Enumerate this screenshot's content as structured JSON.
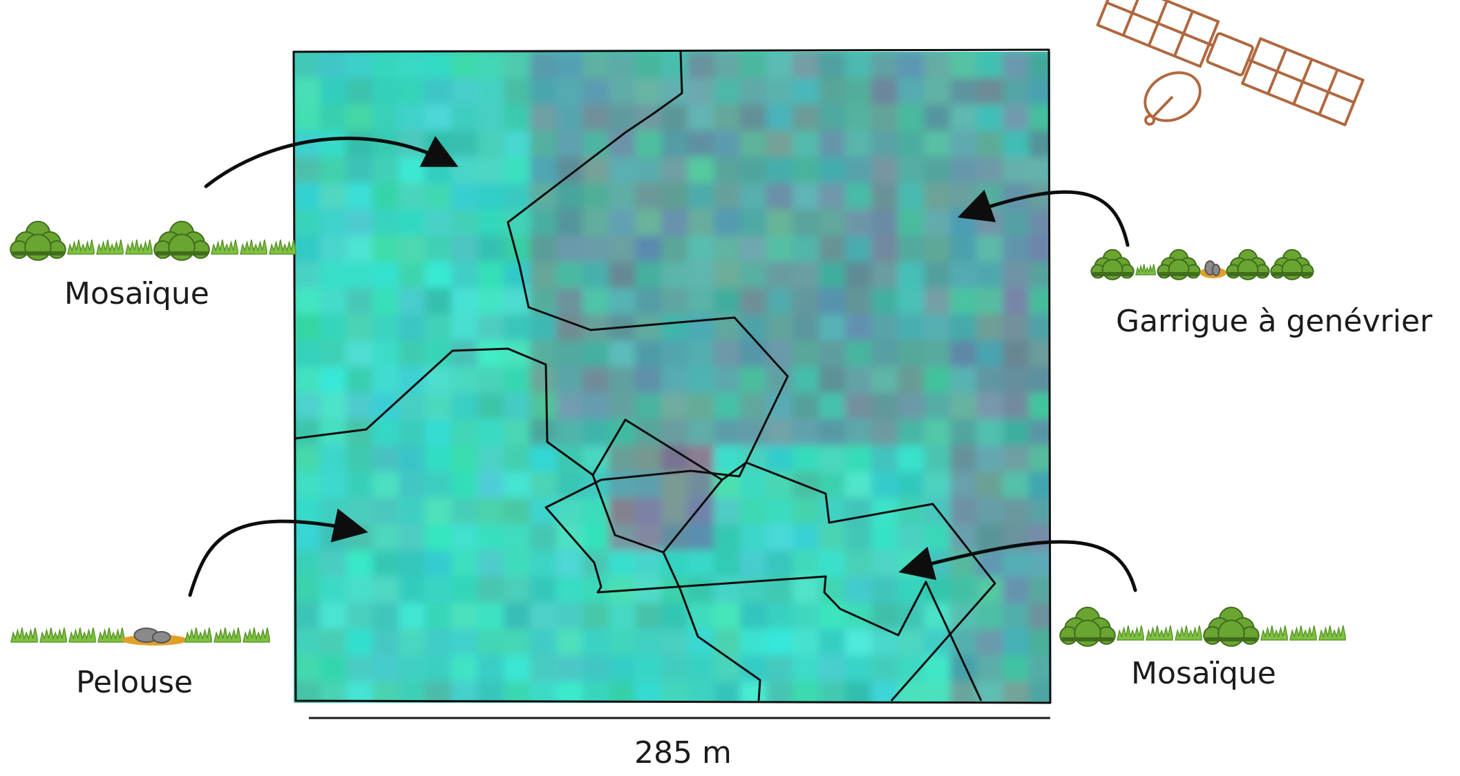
{
  "labels": {
    "mosaique_left": "Mosaïque",
    "garrigue": "Garrigue à genévrier",
    "pelouse": "Pelouse",
    "mosaique_right": "Mosaïque",
    "scale": "285 m"
  },
  "icons": [
    "satellite-icon",
    "shrub-icon",
    "grass-icon",
    "rock-icon"
  ],
  "colors": {
    "image_base": "#3ec9b0",
    "image_cyan": "#45f0e8",
    "image_mauve": "#8d6e93",
    "boundary": "#0d0d0d",
    "satellite": "#b0683f",
    "shrub": "#6aa532",
    "grass": "#7fc242",
    "soil": "#e0a02a",
    "rock": "#8a8a8a"
  }
}
